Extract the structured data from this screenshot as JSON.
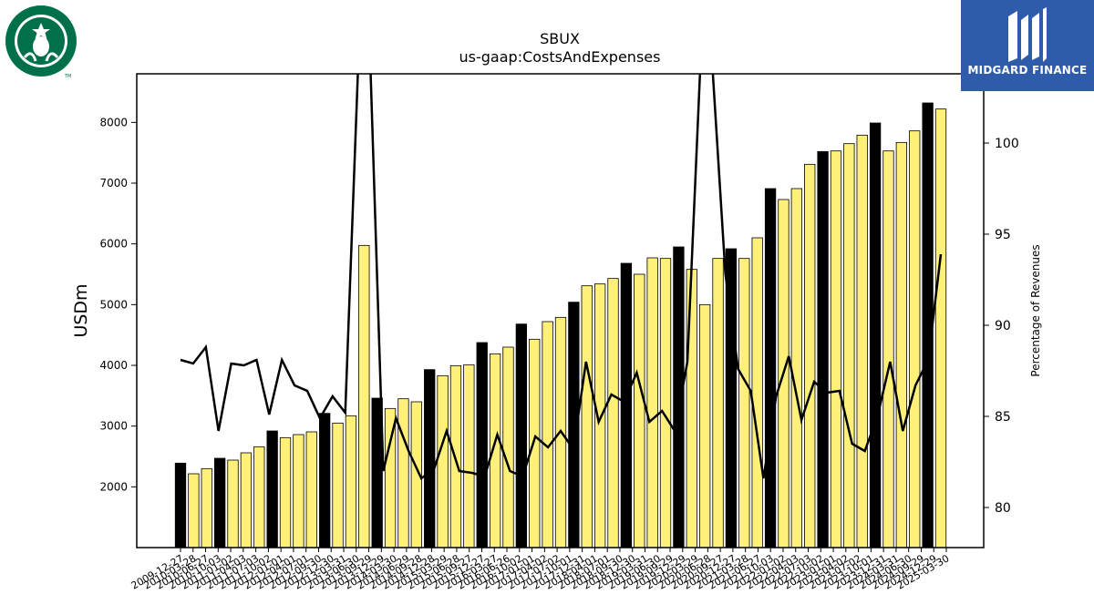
{
  "chart_data": {
    "type": "bar",
    "title": "SBUX",
    "subtitle": "us-gaap:CostsAndExpenses",
    "ylabel": "USDm",
    "y2label": "Percentage of Revenues",
    "ylim": [
      1000,
      8800
    ],
    "y2lim": [
      77.8,
      103.8
    ],
    "yticks": [
      2000,
      3000,
      4000,
      5000,
      6000,
      7000,
      8000
    ],
    "y2ticks": [
      80,
      85,
      90,
      95,
      100
    ],
    "xtick_labels": [
      "2009-12-27",
      "2010-03-28",
      "2010-06-27",
      "2010-10-03",
      "2011-01-02",
      "2011-04-03",
      "2011-07-03",
      "2011-10-02",
      "2012-01-01",
      "2012-04-01",
      "2012-07-01",
      "2012-09-30",
      "2012-12-30",
      "2013-03-31",
      "2013-06-30",
      "2013-09-29",
      "2013-12-29",
      "2014-03-30",
      "2014-06-29",
      "2014-09-28",
      "2014-12-28",
      "2015-03-29",
      "2015-06-28",
      "2015-09-27",
      "2015-12-27",
      "2016-03-27",
      "2016-06-26",
      "2016-10-02",
      "2017-01-01",
      "2017-04-02",
      "2017-07-02",
      "2017-10-01",
      "2017-12-31",
      "2018-04-01",
      "2018-07-01",
      "2018-09-30",
      "2018-12-30",
      "2019-03-31",
      "2019-06-30",
      "2019-09-29",
      "2019-12-29",
      "2020-03-29",
      "2020-06-28",
      "2020-09-27",
      "2020-12-27",
      "2021-03-28",
      "2021-06-27",
      "2021-10-03",
      "2022-01-02",
      "2022-04-03",
      "2022-07-03",
      "2022-10-02",
      "2023-01-01",
      "2023-04-02",
      "2023-07-02",
      "2023-10-01",
      "2023-12-31",
      "2024-03-31",
      "2024-06-30",
      "2024-09-29",
      "2024-12-29",
      "2025-03-30"
    ],
    "bars": [
      {
        "v": 2390,
        "annual": true
      },
      {
        "v": 2215
      },
      {
        "v": 2300
      },
      {
        "v": 2470,
        "annual": true
      },
      {
        "v": 2440
      },
      {
        "v": 2560
      },
      {
        "v": 2660
      },
      {
        "v": 2920,
        "annual": true
      },
      {
        "v": 2810
      },
      {
        "v": 2860
      },
      {
        "v": 2905
      },
      {
        "v": 3210,
        "annual": true
      },
      {
        "v": 3050
      },
      {
        "v": 3170
      },
      {
        "v": 5975
      },
      {
        "v": 3460,
        "annual": true
      },
      {
        "v": 3290
      },
      {
        "v": 3450
      },
      {
        "v": 3400
      },
      {
        "v": 3930,
        "annual": true
      },
      {
        "v": 3830
      },
      {
        "v": 3995
      },
      {
        "v": 4010
      },
      {
        "v": 4375,
        "annual": true
      },
      {
        "v": 4190
      },
      {
        "v": 4300
      },
      {
        "v": 4680,
        "annual": true
      },
      {
        "v": 4430
      },
      {
        "v": 4720
      },
      {
        "v": 4790
      },
      {
        "v": 5040,
        "annual": true
      },
      {
        "v": 5310
      },
      {
        "v": 5340
      },
      {
        "v": 5430
      },
      {
        "v": 5680,
        "annual": true
      },
      {
        "v": 5500
      },
      {
        "v": 5770
      },
      {
        "v": 5760
      },
      {
        "v": 5950,
        "annual": true
      },
      {
        "v": 5580
      },
      {
        "v": 5000
      },
      {
        "v": 5760
      },
      {
        "v": 5920,
        "annual": true
      },
      {
        "v": 5760
      },
      {
        "v": 6100
      },
      {
        "v": 6910,
        "annual": true
      },
      {
        "v": 6730
      },
      {
        "v": 6910
      },
      {
        "v": 7310
      },
      {
        "v": 7520,
        "annual": true
      },
      {
        "v": 7530
      },
      {
        "v": 7650
      },
      {
        "v": 7790
      },
      {
        "v": 7990,
        "annual": true
      },
      {
        "v": 7530
      },
      {
        "v": 7670
      },
      {
        "v": 7860
      },
      {
        "v": 8320,
        "annual": true
      },
      {
        "v": 8220
      }
    ],
    "line": [
      88.1,
      87.9,
      88.8,
      84.2,
      87.9,
      87.8,
      88.1,
      85.1,
      88.1,
      86.7,
      86.4,
      84.9,
      86.1,
      85.2,
      115,
      115,
      82.0,
      84.9,
      83.1,
      81.6,
      82.1,
      84.2,
      82.0,
      81.9,
      81.7,
      84.0,
      82.0,
      81.7,
      83.9,
      83.3,
      84.2,
      83.2,
      88.0,
      84.7,
      86.2,
      85.8,
      87.4,
      84.7,
      85.3,
      84.2,
      88.0,
      115,
      115,
      92.8,
      87.6,
      86.4,
      81.6,
      86.1,
      88.3,
      84.8,
      86.9,
      86.3,
      86.4,
      83.5,
      83.1,
      85.0,
      88.0,
      84.2,
      86.7,
      88.1,
      93.9
    ]
  },
  "logos": {
    "right_brand": "MIDGARD FINANCE",
    "left_tm": "TM"
  }
}
